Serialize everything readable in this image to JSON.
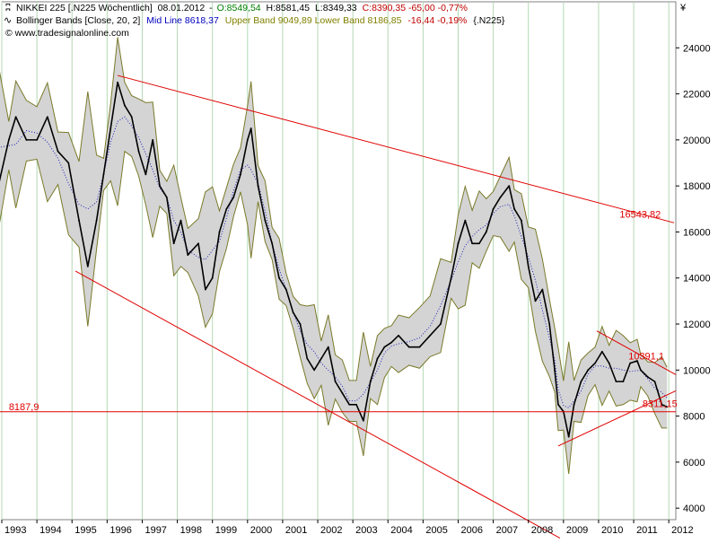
{
  "header": {
    "line1": {
      "instrument": "NIKKEI 225 [.N225  Wöchentlich]",
      "date": "08.01.2012",
      "open": "O:8549,54",
      "high": "H:8581,45",
      "low": "L:8349,33",
      "close_change": "C:8390,35 -65,00 -0,77%"
    },
    "line2": {
      "indicator": "Bollinger Bands [Close, 20, 2]",
      "midline": "Mid Line 8618,37",
      "bands": "Upper Band 9049,89 Lower Band 8186,85",
      "change": "-16,44 -0,19%",
      "symbol": "{.N225}"
    },
    "line3": {
      "copyright": "© www.tradesignalonline.com"
    },
    "currency": "¥"
  },
  "colors": {
    "price": "#000000",
    "band_fill": "#d4d4d4",
    "band_edge": "#7a7a2a",
    "midline": "#2020c0",
    "trendline": "#e00000",
    "grid": "#b4d8b4",
    "header_blue": "#0000c0",
    "header_olive": "#808000",
    "header_red": "#c00000",
    "header_green": "#008000"
  },
  "chart_data": {
    "type": "line",
    "y_axis": {
      "min": 3500,
      "max": 26000,
      "ticks": [
        "4000",
        "6000",
        "8000",
        "10000",
        "12000",
        "14000",
        "16000",
        "18000",
        "20000",
        "22000",
        "24000"
      ]
    },
    "x_axis": {
      "min": 1993.0,
      "max": 2012.2,
      "ticks": [
        "1993",
        "1994",
        "1995",
        "1996",
        "1997",
        "1998",
        "1999",
        "2000",
        "2001",
        "2002",
        "2003",
        "2004",
        "2005",
        "2006",
        "2007",
        "2008",
        "2009",
        "2010",
        "2011",
        "2012"
      ]
    },
    "grid": true,
    "series": [
      {
        "type": "line",
        "x": [
          1992.9,
          1993.2,
          1993.4,
          1993.7,
          1994.0,
          1994.3,
          1994.6,
          1994.9,
          1995.2,
          1995.45,
          1995.7,
          1995.9,
          1996.1,
          1996.3,
          1996.5,
          1996.7,
          1996.9,
          1997.1,
          1997.3,
          1997.5,
          1997.7,
          1997.9,
          1998.1,
          1998.3,
          1998.6,
          1998.8,
          1999.0,
          1999.2,
          1999.4,
          1999.6,
          1999.8,
          2000.0,
          2000.1,
          2000.3,
          2000.5,
          2000.7,
          2000.9,
          2001.1,
          2001.3,
          2001.5,
          2001.7,
          2001.9,
          2002.1,
          2002.3,
          2002.5,
          2002.7,
          2002.9,
          2003.1,
          2003.3,
          2003.5,
          2003.7,
          2003.9,
          2004.1,
          2004.3,
          2004.6,
          2004.9,
          2005.2,
          2005.5,
          2005.8,
          2006.0,
          2006.2,
          2006.4,
          2006.6,
          2006.8,
          2007.0,
          2007.2,
          2007.45,
          2007.6,
          2007.8,
          2008.0,
          2008.2,
          2008.4,
          2008.6,
          2008.75,
          2008.85,
          2009.0,
          2009.15,
          2009.3,
          2009.5,
          2009.7,
          2009.9,
          2010.1,
          2010.3,
          2010.5,
          2010.7,
          2010.9,
          2011.1,
          2011.2,
          2011.4,
          2011.6,
          2011.8,
          2011.95
        ],
        "values": [
          18000,
          20000,
          21000,
          20000,
          20000,
          21000,
          19500,
          19000,
          16500,
          14500,
          16500,
          18500,
          20500,
          22500,
          21500,
          21000,
          19500,
          18500,
          20000,
          18000,
          17500,
          15500,
          16500,
          15000,
          15500,
          13500,
          14000,
          16000,
          17000,
          17500,
          18500,
          20000,
          20500,
          18000,
          16500,
          15500,
          14000,
          13500,
          12500,
          12000,
          10500,
          10000,
          10500,
          11000,
          9500,
          9000,
          8500,
          8500,
          7800,
          9500,
          10500,
          11000,
          11200,
          11500,
          11000,
          11000,
          11500,
          12000,
          14000,
          15500,
          16500,
          15500,
          15500,
          16000,
          17000,
          17500,
          18000,
          17000,
          16500,
          14500,
          13000,
          13500,
          12000,
          10000,
          8500,
          8200,
          7100,
          8500,
          9500,
          10000,
          10300,
          10800,
          10300,
          9500,
          9500,
          10300,
          10400,
          10000,
          9700,
          9500,
          8500,
          8400
        ]
      }
    ],
    "trendlines": [
      {
        "from": [
          1996.3,
          22800
        ],
        "to": [
          2012.15,
          16400
        ]
      },
      {
        "from": [
          1995.1,
          14300
        ],
        "to": [
          2008.9,
          2700
        ]
      },
      {
        "from": [
          1992.9,
          8187.9
        ],
        "to": [
          2012.2,
          8187.9
        ]
      },
      {
        "from": [
          2008.85,
          6700
        ],
        "to": [
          2012.2,
          9100
        ]
      },
      {
        "from": [
          2009.95,
          11700
        ],
        "to": [
          2012.2,
          9800
        ]
      }
    ],
    "annotations": [
      {
        "text": "16543,82",
        "x": 2010.6,
        "y": 16543.82
      },
      {
        "text": "10391,1",
        "x": 2010.85,
        "y": 10391.1
      },
      {
        "text": "8187,9",
        "x": 1993.2,
        "y": 8187.9
      },
      {
        "text": "8311,15",
        "x": 2011.25,
        "y": 8311.15
      }
    ]
  }
}
